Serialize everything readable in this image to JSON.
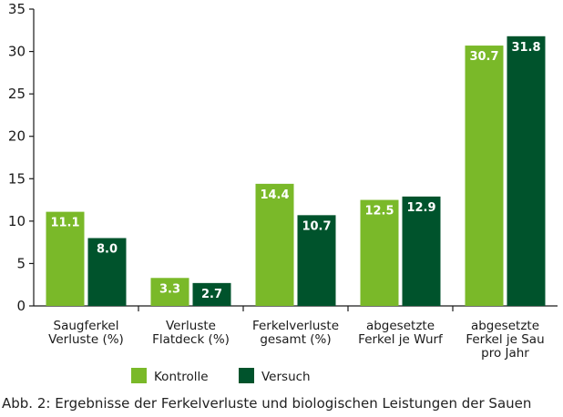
{
  "chart_data": {
    "type": "bar",
    "categories": [
      [
        "Saugferkel",
        "Verluste (%)"
      ],
      [
        "Verluste",
        "Flatdeck (%)"
      ],
      [
        "Ferkelverluste",
        "gesamt (%)"
      ],
      [
        "abgesetzte",
        "Ferkel je Wurf"
      ],
      [
        "abgesetzte",
        "Ferkel je Sau",
        "pro Jahr"
      ]
    ],
    "series": [
      {
        "name": "Kontrolle",
        "color": "#7ab929",
        "values": [
          11.1,
          3.3,
          14.4,
          12.5,
          30.7
        ],
        "labels": [
          "11.1",
          "3.3",
          "14.4",
          "12.5",
          "30.7"
        ]
      },
      {
        "name": "Versuch",
        "color": "#00532c",
        "values": [
          8.0,
          2.7,
          10.7,
          12.9,
          31.8
        ],
        "labels": [
          "8.0",
          "2.7",
          "10.7",
          "12.9",
          "31.8"
        ]
      }
    ],
    "yticks": [
      "0",
      "5",
      "10",
      "15",
      "20",
      "25",
      "30",
      "35"
    ],
    "ylim": [
      0,
      35
    ],
    "grid": false,
    "legend": "bottom-center"
  },
  "caption": {
    "prefix": "Abb. 2:",
    "text": " Ergebnisse der Ferkelverluste und biologischen Leistungen der Sauen"
  }
}
